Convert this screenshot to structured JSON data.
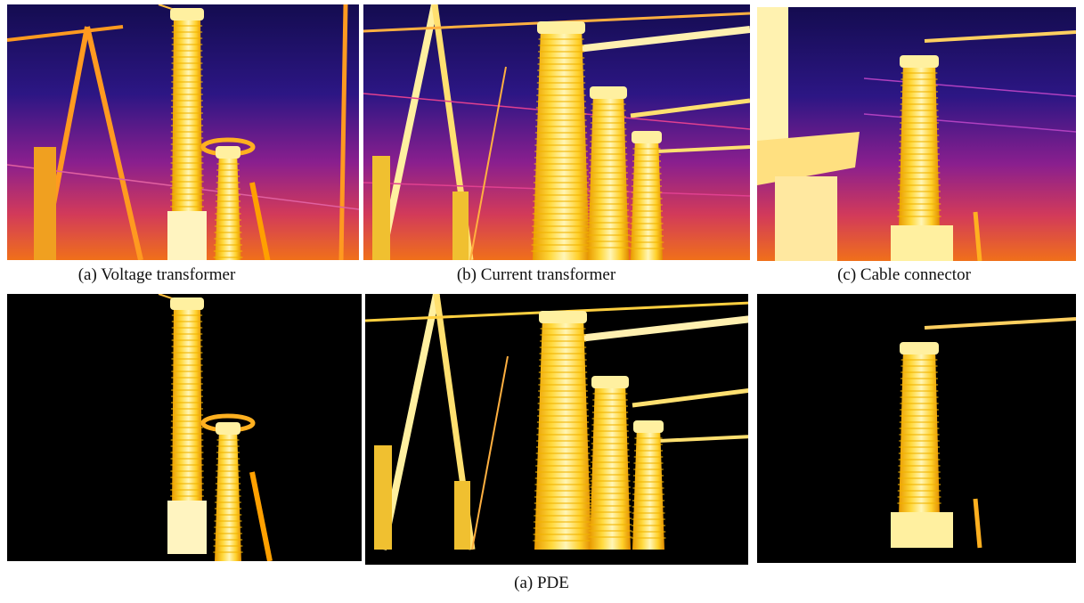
{
  "figure": {
    "panels": [
      {
        "caption": "(a) Voltage transformer"
      },
      {
        "caption": "(b) Current transformer"
      },
      {
        "caption": "(c) Cable connector"
      }
    ],
    "caption": "(a) PDE"
  }
}
